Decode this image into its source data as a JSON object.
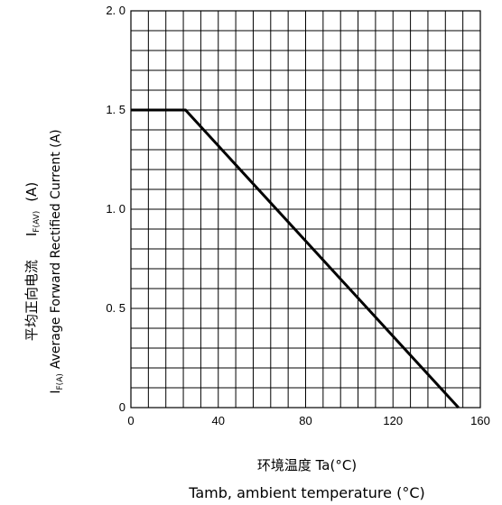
{
  "chart_data": {
    "type": "line",
    "title": "",
    "xlabel_cn": "环境温度  Ta(°C)",
    "xlabel_en": "Tamb, ambient temperature (°C)",
    "ylabel_cn": "平均正向电流",
    "ylabel_sym": "I",
    "ylabel_sym_sub": "F(AV)",
    "ylabel_unit": "(A)",
    "ylabel_en_sym": "I",
    "ylabel_en_sub": "F(A)",
    "ylabel_en": "Average Forward Rectified Current (A)",
    "xlim": [
      0,
      160
    ],
    "ylim": [
      0,
      2.0
    ],
    "x_ticks": [
      0,
      40,
      80,
      120,
      160
    ],
    "x_tick_labels": [
      "0",
      "40",
      "80",
      "120",
      "160"
    ],
    "y_ticks": [
      0,
      0.5,
      1.0,
      1.5,
      2.0
    ],
    "y_tick_labels": [
      "0",
      "0. 5",
      "1. 0",
      "1. 5",
      "2. 0"
    ],
    "grid": true,
    "grid_minor_x_step": 8,
    "grid_minor_y_step": 0.1,
    "series": [
      {
        "x": [
          0,
          25,
          150
        ],
        "y": [
          1.5,
          1.5,
          0
        ]
      }
    ]
  }
}
